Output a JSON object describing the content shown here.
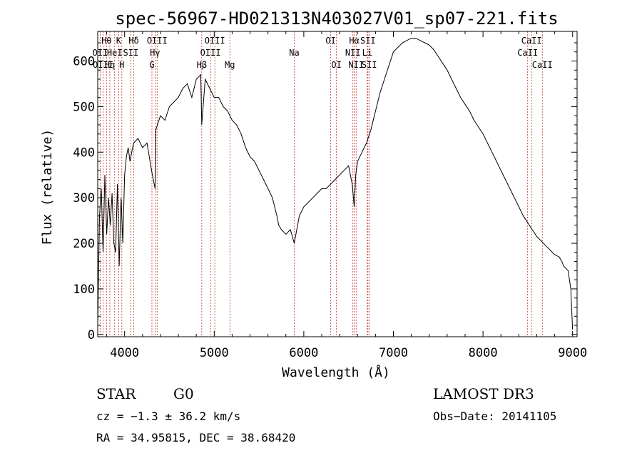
{
  "chart_data": {
    "type": "line",
    "title": "spec-56967-HD021313N403027V01_sp07-221.fits",
    "xlabel": "Wavelength (Å)",
    "ylabel": "Flux (relative)",
    "xlim": [
      3700,
      9050
    ],
    "ylim": [
      -5,
      665
    ],
    "xticks": [
      4000,
      5000,
      6000,
      7000,
      8000,
      9000
    ],
    "yticks": [
      0,
      100,
      200,
      300,
      400,
      500,
      600
    ],
    "grid": false,
    "series": [
      {
        "x": [
          3700,
          3720,
          3740,
          3760,
          3780,
          3800,
          3820,
          3840,
          3860,
          3880,
          3900,
          3920,
          3940,
          3960,
          3980,
          4000,
          4020,
          4040,
          4060,
          4080,
          4100,
          4150,
          4200,
          4250,
          4300,
          4340,
          4350,
          4400,
          4450,
          4500,
          4550,
          4600,
          4650,
          4700,
          4750,
          4800,
          4850,
          4861,
          4900,
          4950,
          5000,
          5050,
          5100,
          5150,
          5200,
          5250,
          5300,
          5350,
          5400,
          5450,
          5500,
          5550,
          5600,
          5650,
          5700,
          5720,
          5750,
          5800,
          5850,
          5893,
          5950,
          6000,
          6050,
          6100,
          6150,
          6200,
          6250,
          6300,
          6350,
          6400,
          6450,
          6500,
          6540,
          6563,
          6580,
          6600,
          6650,
          6700,
          6750,
          6800,
          6850,
          6900,
          6950,
          7000,
          7050,
          7100,
          7150,
          7200,
          7250,
          7300,
          7350,
          7400,
          7450,
          7500,
          7550,
          7600,
          7650,
          7700,
          7750,
          7800,
          7850,
          7900,
          7950,
          8000,
          8050,
          8100,
          8150,
          8200,
          8250,
          8300,
          8350,
          8400,
          8450,
          8500,
          8550,
          8600,
          8650,
          8700,
          8750,
          8800,
          8850,
          8880,
          8900,
          8950,
          8980,
          9000
        ],
        "values": [
          20,
          260,
          320,
          180,
          350,
          220,
          300,
          240,
          310,
          200,
          180,
          330,
          150,
          300,
          200,
          350,
          390,
          410,
          380,
          400,
          420,
          430,
          410,
          420,
          360,
          320,
          450,
          480,
          470,
          500,
          510,
          520,
          540,
          550,
          520,
          560,
          570,
          460,
          560,
          540,
          520,
          520,
          500,
          490,
          470,
          460,
          440,
          410,
          390,
          380,
          360,
          340,
          320,
          300,
          260,
          240,
          230,
          220,
          230,
          200,
          260,
          280,
          290,
          300,
          310,
          320,
          320,
          330,
          340,
          350,
          360,
          370,
          330,
          280,
          350,
          380,
          400,
          420,
          450,
          490,
          530,
          560,
          590,
          620,
          630,
          640,
          645,
          650,
          650,
          645,
          640,
          635,
          625,
          610,
          595,
          580,
          560,
          540,
          520,
          505,
          490,
          470,
          455,
          440,
          420,
          400,
          380,
          360,
          340,
          320,
          300,
          280,
          260,
          245,
          230,
          215,
          205,
          195,
          185,
          175,
          170,
          160,
          150,
          140,
          100,
          10
        ]
      }
    ],
    "line_markers": [
      {
        "name": "Hθ",
        "wl": 3798,
        "row": 0
      },
      {
        "name": "OII",
        "wl": 3727,
        "row": 1
      },
      {
        "name": "OIII",
        "wl": 3760,
        "row": 2
      },
      {
        "name": "K",
        "wl": 3934,
        "row": 0
      },
      {
        "name": "HeI",
        "wl": 3889,
        "row": 1
      },
      {
        "name": "Hη",
        "wl": 3835,
        "row": 2
      },
      {
        "name": "SII",
        "wl": 4069,
        "row": 1
      },
      {
        "name": "H",
        "wl": 3969,
        "row": 2
      },
      {
        "name": "Hδ",
        "wl": 4102,
        "row": 0
      },
      {
        "name": "OIII",
        "wl": 4363,
        "row": 0
      },
      {
        "name": "Hγ",
        "wl": 4340,
        "row": 1
      },
      {
        "name": "G",
        "wl": 4305,
        "row": 2
      },
      {
        "name": "OIII",
        "wl": 5007,
        "row": 0
      },
      {
        "name": "OIII",
        "wl": 4959,
        "row": 1
      },
      {
        "name": "Hβ",
        "wl": 4861,
        "row": 2
      },
      {
        "name": "Mg",
        "wl": 5175,
        "row": 2
      },
      {
        "name": "Na",
        "wl": 5893,
        "row": 1
      },
      {
        "name": "OI",
        "wl": 6300,
        "row": 0
      },
      {
        "name": "OI",
        "wl": 6364,
        "row": 2
      },
      {
        "name": "Hα",
        "wl": 6563,
        "row": 0
      },
      {
        "name": "SII",
        "wl": 6716,
        "row": 0
      },
      {
        "name": "NII",
        "wl": 6548,
        "row": 1
      },
      {
        "name": "Li",
        "wl": 6708,
        "row": 1
      },
      {
        "name": "NII",
        "wl": 6584,
        "row": 2
      },
      {
        "name": "SII",
        "wl": 6731,
        "row": 2
      },
      {
        "name": "CaII",
        "wl": 8542,
        "row": 0
      },
      {
        "name": "CaII",
        "wl": 8498,
        "row": 1
      },
      {
        "name": "CaII",
        "wl": 8662,
        "row": 2
      }
    ]
  },
  "info": {
    "class": "STAR",
    "subclass": "G0",
    "survey": "LAMOST DR3",
    "cz": "cz = −1.3 ± 36.2 km/s",
    "obs_date": "Obs−Date: 20141105",
    "coords": "RA =  34.95815, DEC =  38.68420"
  },
  "colors": {
    "line": "#000000",
    "marker": "#c0392b",
    "axis": "#000000"
  }
}
